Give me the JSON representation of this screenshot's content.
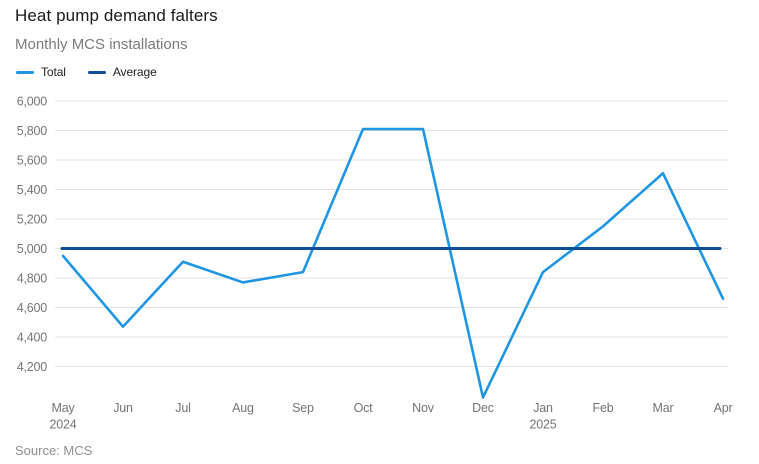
{
  "header": {
    "title": "Heat pump demand falters",
    "subtitle": "Monthly MCS installations"
  },
  "legend": {
    "items": [
      {
        "label": "Total",
        "color": "#1f96e4"
      },
      {
        "label": "Average",
        "color": "#0e4e96"
      }
    ]
  },
  "footer": {
    "source": "Source: MCS"
  },
  "colors": {
    "total_line": "#1f96e4",
    "average_line": "#0e4e96",
    "gridline": "#e3e3e3",
    "tick_text": "#757575",
    "title_text": "#1a1a1a",
    "subtitle_text": "#7b7b7b",
    "source_text": "#8f8f8f"
  },
  "chart_data": {
    "type": "line",
    "title": "Heat pump demand falters",
    "subtitle": "Monthly MCS installations",
    "source": "Source: MCS",
    "categories": [
      "May",
      "Jun",
      "Jul",
      "Aug",
      "Sep",
      "Oct",
      "Nov",
      "Dec",
      "Jan",
      "Feb",
      "Mar",
      "Apr"
    ],
    "x_year_labels": [
      {
        "index": 0,
        "label": "2024"
      },
      {
        "index": 8,
        "label": "2025"
      }
    ],
    "series": [
      {
        "name": "Total",
        "type": "line",
        "color": "#1f96e4",
        "values": [
          4950,
          4470,
          4910,
          4770,
          4840,
          5810,
          5810,
          3990,
          4840,
          5150,
          5510,
          4660
        ]
      },
      {
        "name": "Average",
        "type": "constant-line",
        "color": "#0e4e96",
        "value": 5000
      }
    ],
    "y_ticks": [
      4200,
      4400,
      4600,
      4800,
      5000,
      5200,
      5400,
      5600,
      5800,
      6000
    ],
    "ylim": [
      3950,
      6050
    ],
    "grid": "horizontal",
    "legend_position": "top-left",
    "xlabel": "",
    "ylabel": ""
  }
}
